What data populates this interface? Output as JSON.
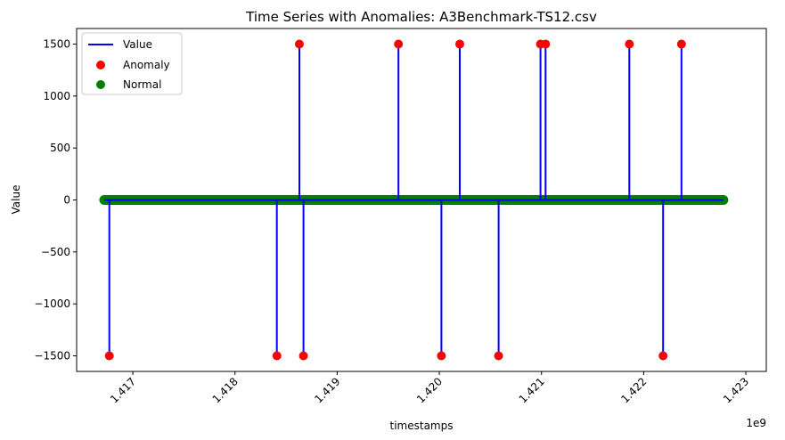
{
  "chart_data": {
    "type": "line",
    "title": "Time Series with Anomalies: A3Benchmark-TS12.csv",
    "xlabel": "timestamps",
    "ylabel": "Value",
    "x_offset_label": "1e9",
    "xlim": [
      1416.45,
      1423.2
    ],
    "ylim": [
      -1650,
      1650
    ],
    "x_range": [
      1416.72,
      1422.78
    ],
    "normal_level": 0,
    "x_ticks": [
      {
        "value": 1417,
        "label": "1.417"
      },
      {
        "value": 1418,
        "label": "1.418"
      },
      {
        "value": 1419,
        "label": "1.419"
      },
      {
        "value": 1420,
        "label": "1.420"
      },
      {
        "value": 1421,
        "label": "1.421"
      },
      {
        "value": 1422,
        "label": "1.422"
      },
      {
        "value": 1423,
        "label": "1.423"
      }
    ],
    "y_ticks": [
      {
        "value": 1500,
        "label": "1500"
      },
      {
        "value": 1000,
        "label": "1000"
      },
      {
        "value": 500,
        "label": "500"
      },
      {
        "value": 0,
        "label": "0"
      },
      {
        "value": -500,
        "label": "−500"
      },
      {
        "value": -1000,
        "label": "−1000"
      },
      {
        "value": -1500,
        "label": "−1500"
      }
    ],
    "anomalies": [
      {
        "x": 1416.77,
        "y": -1500
      },
      {
        "x": 1418.41,
        "y": -1500
      },
      {
        "x": 1418.63,
        "y": 1500
      },
      {
        "x": 1418.67,
        "y": -1500
      },
      {
        "x": 1419.6,
        "y": 1500
      },
      {
        "x": 1420.02,
        "y": -1500
      },
      {
        "x": 1420.2,
        "y": 1500
      },
      {
        "x": 1420.58,
        "y": -1500
      },
      {
        "x": 1420.99,
        "y": 1500
      },
      {
        "x": 1421.04,
        "y": 1500
      },
      {
        "x": 1421.86,
        "y": 1500
      },
      {
        "x": 1422.19,
        "y": -1500
      },
      {
        "x": 1422.37,
        "y": 1500
      }
    ],
    "series": [
      {
        "name": "Value",
        "kind": "line",
        "color": "#0000ff"
      },
      {
        "name": "Anomaly",
        "kind": "scatter",
        "color": "#ff0000"
      },
      {
        "name": "Normal",
        "kind": "scatter",
        "color": "#008000"
      }
    ],
    "legend_position": "top-left",
    "grid": false
  }
}
